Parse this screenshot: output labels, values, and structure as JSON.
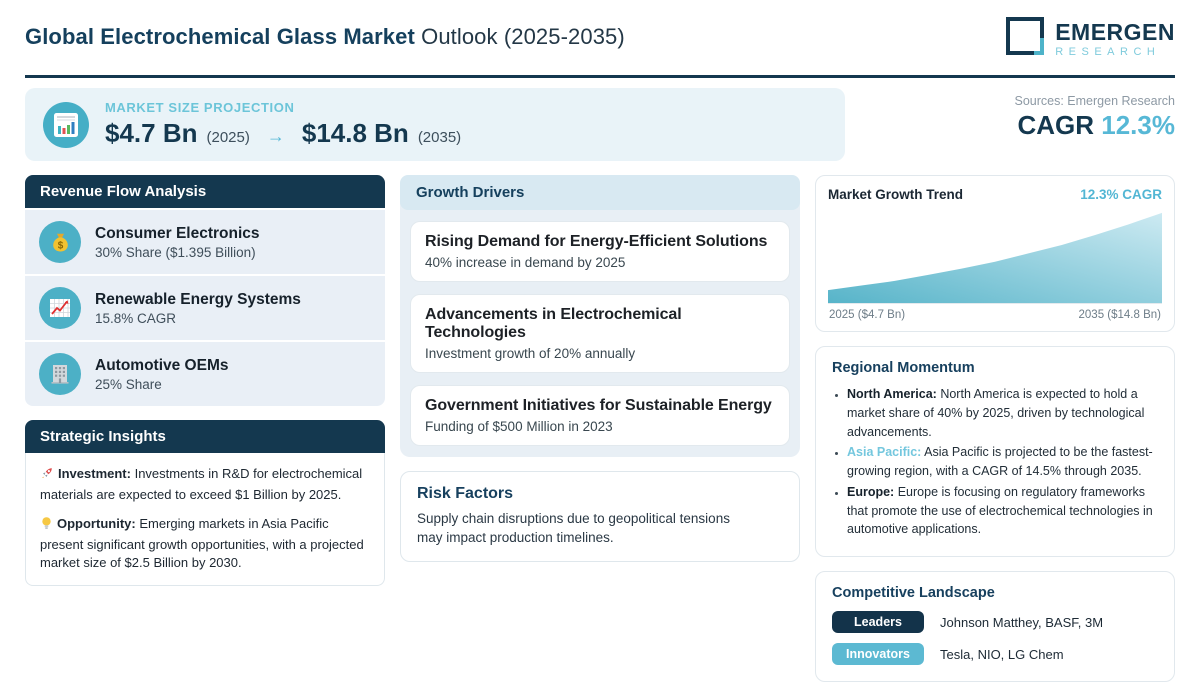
{
  "header": {
    "title_strong": "Global Electrochemical Glass Market",
    "title_rest": " Outlook (2025-2035)",
    "logo": {
      "line1": "EMERGEN",
      "line2": "RESEARCH",
      "mark_icon": "emergen-square-logo"
    }
  },
  "projection": {
    "icon": "bar-chart-icon",
    "label": "MARKET SIZE PROJECTION",
    "start_value": "$4.7 Bn",
    "start_year": "(2025)",
    "arrow": "→",
    "end_value": "$14.8 Bn",
    "end_year": "(2035)"
  },
  "attribution": {
    "sources": "Sources: Emergen Research",
    "cagr_label": "CAGR",
    "cagr_value": "12.3%"
  },
  "revenue_flow": {
    "title": "Revenue Flow Analysis",
    "items": [
      {
        "icon": "money-bag-icon",
        "title": "Consumer Electronics",
        "subtitle": "30% Share ($1.395 Billion)"
      },
      {
        "icon": "chart-increasing-icon",
        "title": "Renewable Energy Systems",
        "subtitle": "15.8% CAGR"
      },
      {
        "icon": "office-building-icon",
        "title": "Automotive OEMs",
        "subtitle": "25% Share"
      }
    ]
  },
  "strategic_insights": {
    "title": "Strategic Insights",
    "items": [
      {
        "icon": "rocket-icon",
        "label": "Investment:",
        "text": "Investments in R&D for electrochemical materials are expected to exceed $1 Billion by 2025."
      },
      {
        "icon": "lightbulb-icon",
        "label": "Opportunity:",
        "text": "Emerging markets in Asia Pacific present significant growth opportunities, with a projected market size of $2.5 Billion by 2030."
      }
    ]
  },
  "growth_drivers": {
    "title": "Growth Drivers",
    "cards": [
      {
        "title": "Rising Demand for Energy-Efficient Solutions",
        "subtitle": "40% increase in demand by 2025"
      },
      {
        "title": "Advancements in Electrochemical Technologies",
        "subtitle": "Investment growth of 20% annually"
      },
      {
        "title": "Government Initiatives for Sustainable Energy",
        "subtitle": "Funding of $500 Million in 2023"
      }
    ]
  },
  "risk_factors": {
    "title": "Risk Factors",
    "text": "Supply chain disruptions due to geopolitical tensions may impact production timelines."
  },
  "market_growth_trend": {
    "title": "Market Growth Trend",
    "cagr_badge": "12.3% CAGR",
    "x_start_label": "2025 ($4.7 Bn)",
    "x_end_label": "2035 ($14.8 Bn)"
  },
  "chart_data": {
    "type": "area",
    "title": "Market Growth Trend",
    "x": [
      2025,
      2026,
      2027,
      2028,
      2029,
      2030,
      2031,
      2032,
      2033,
      2034,
      2035
    ],
    "values": [
      4.7,
      5.3,
      5.9,
      6.7,
      7.5,
      8.4,
      9.5,
      10.6,
      11.9,
      13.3,
      14.8
    ],
    "unit": "$ Bn",
    "cagr_pct": 12.3,
    "xlabel": "",
    "ylabel": "",
    "x_tick_labels": [
      "2025 ($4.7 Bn)",
      "2035 ($14.8 Bn)"
    ],
    "grid": false,
    "legend": false,
    "fill_gradient": [
      "#57b4c9",
      "#cdeaf2"
    ]
  },
  "regional_momentum": {
    "title": "Regional Momentum",
    "items": [
      {
        "label": "North America:",
        "text": "North America is expected to hold a market share of 40% by 2025, driven by technological advancements."
      },
      {
        "label": "Asia Pacific:",
        "text": "Asia Pacific is projected to be the fastest-growing region, with a CAGR of 14.5% through 2035."
      },
      {
        "label": "Europe:",
        "text": "Europe is focusing on regulatory frameworks that promote the use of electrochemical technologies in automotive applications."
      }
    ]
  },
  "competitive_landscape": {
    "title": "Competitive Landscape",
    "rows": [
      {
        "badge": "Leaders",
        "badge_color": "#13334a",
        "companies": "Johnson Matthey, BASF, 3M"
      },
      {
        "badge": "Innovators",
        "badge_color": "#5cb9d2",
        "companies": "Tesla, NIO, LG Chem"
      }
    ]
  },
  "colors": {
    "navy": "#14384f",
    "teal_accent": "#57b8d6",
    "teal_light": "#6cc5d9",
    "icon_circle_teal": "#4cb0c6",
    "panel_light_blue": "#e9f3f8",
    "item_bg": "#e9eff6",
    "growth_header_bg": "#d8e9f2",
    "growth_body_bg": "#e8eff5",
    "source_gray": "#8d99a4"
  }
}
